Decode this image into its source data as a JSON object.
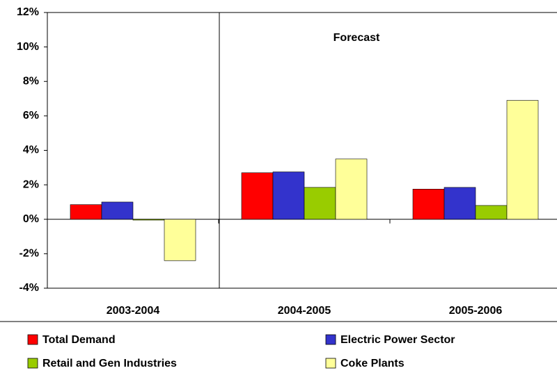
{
  "chart_data": {
    "type": "bar",
    "annotation": "Forecast",
    "categories": [
      "2003-2004",
      "2004-2005",
      "2005-2006"
    ],
    "series": [
      {
        "name": "Total Demand",
        "color": "#ff0000",
        "values": [
          0.85,
          2.7,
          1.75
        ]
      },
      {
        "name": "Electric Power Sector",
        "color": "#3333cc",
        "values": [
          1.0,
          2.75,
          1.85
        ]
      },
      {
        "name": "Retail and Gen Industries",
        "color": "#99cc00",
        "values": [
          -0.05,
          1.85,
          0.8
        ]
      },
      {
        "name": "Coke Plants",
        "color": "#ffff99",
        "values": [
          -2.4,
          3.5,
          6.9
        ]
      }
    ],
    "ylim": [
      -4,
      12
    ],
    "yticks": [
      {
        "value": -4,
        "label": "-4%"
      },
      {
        "value": -2,
        "label": "-2%"
      },
      {
        "value": 0,
        "label": "0%"
      },
      {
        "value": 2,
        "label": "2%"
      },
      {
        "value": 4,
        "label": "4%"
      },
      {
        "value": 6,
        "label": "6%"
      },
      {
        "value": 8,
        "label": "8%"
      },
      {
        "value": 10,
        "label": "10%"
      },
      {
        "value": 12,
        "label": "12%"
      }
    ],
    "grid": false
  }
}
